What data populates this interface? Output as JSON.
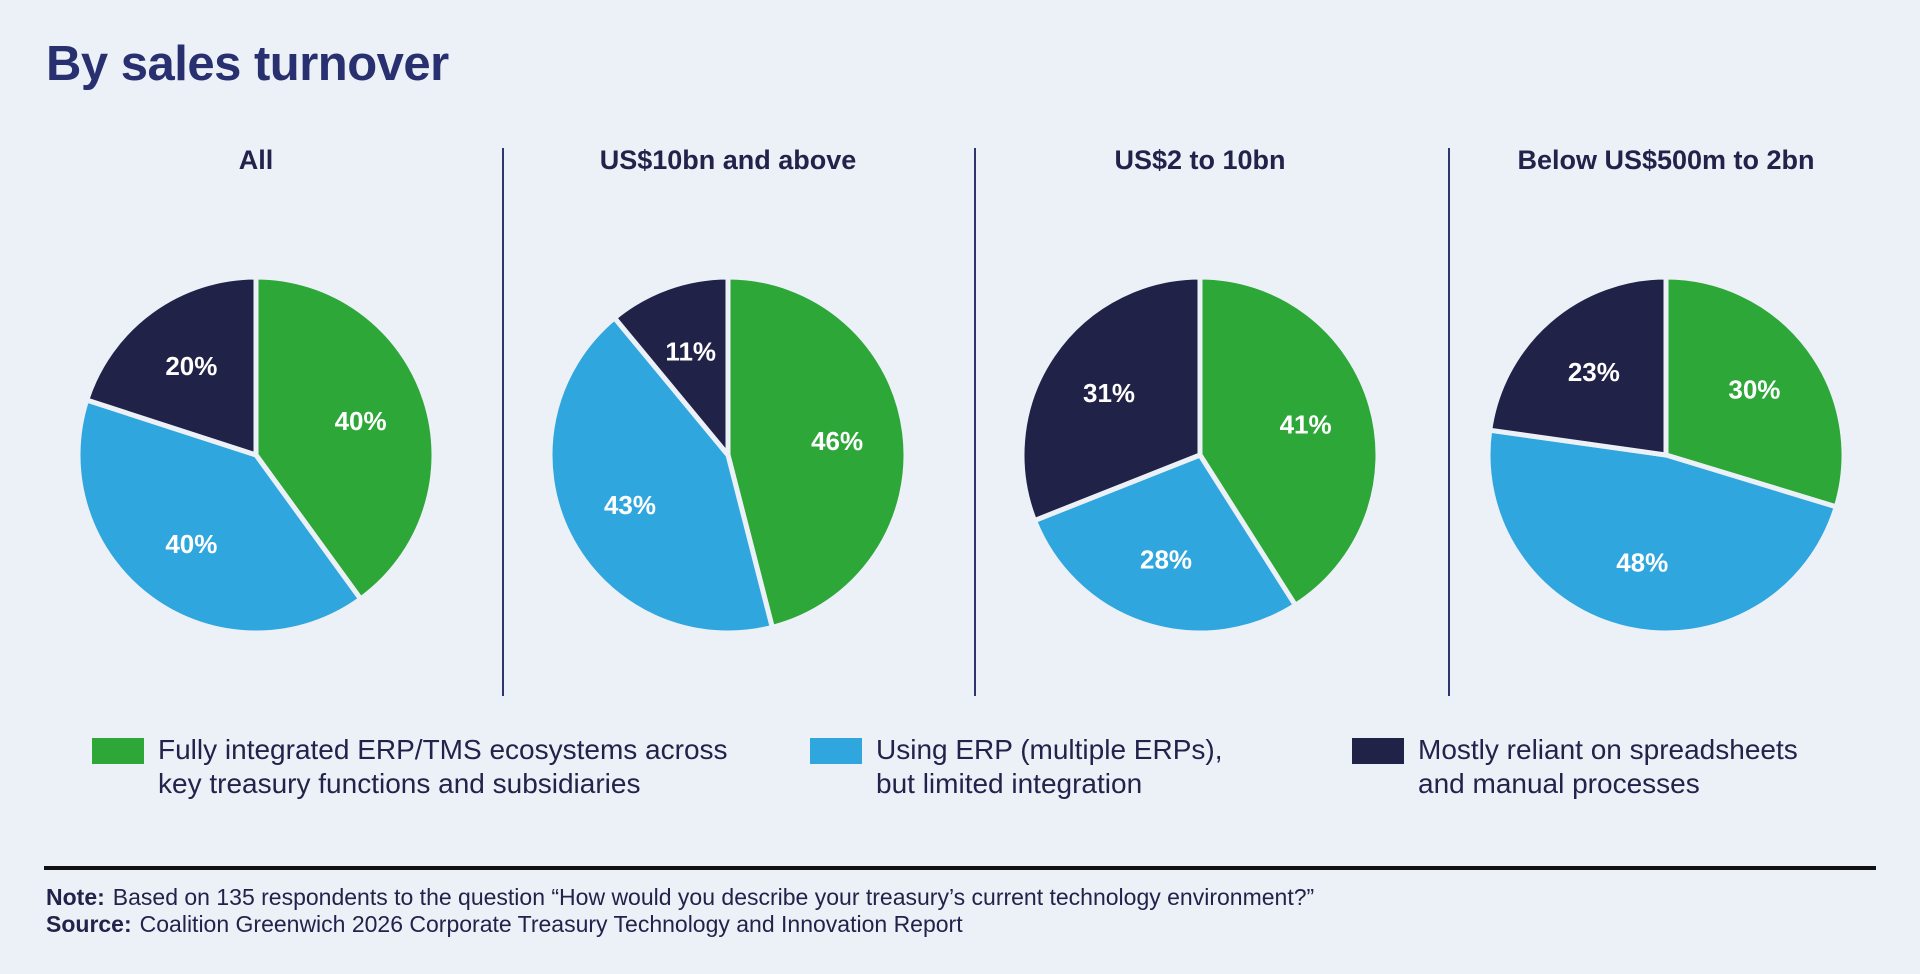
{
  "title": "By sales turnover",
  "colors": {
    "fully_integrated": "#2ea739",
    "using_erp": "#30a6de",
    "manual": "#212247",
    "slice_label": "#ffffff",
    "slice_border": "#ecf1f8"
  },
  "chart_data": [
    {
      "type": "pie",
      "title": "All",
      "categories": [
        "Fully integrated ERP/TMS ecosystems across key treasury functions and subsidiaries",
        "Using ERP (multiple ERPs), but limited integration",
        "Mostly reliant on spreadsheets and manual processes"
      ],
      "values": [
        40,
        40,
        20
      ],
      "labels": [
        "40%",
        "40%",
        "20%"
      ]
    },
    {
      "type": "pie",
      "title": "US$10bn and above",
      "categories": [
        "Fully integrated ERP/TMS ecosystems across key treasury functions and subsidiaries",
        "Using ERP (multiple ERPs), but limited integration",
        "Mostly reliant on spreadsheets and manual processes"
      ],
      "values": [
        46,
        43,
        11
      ],
      "labels": [
        "46%",
        "43%",
        "11%"
      ]
    },
    {
      "type": "pie",
      "title": "US$2 to 10bn",
      "categories": [
        "Fully integrated ERP/TMS ecosystems across key treasury functions and subsidiaries",
        "Using ERP (multiple ERPs), but limited integration",
        "Mostly reliant on spreadsheets and manual processes"
      ],
      "values": [
        41,
        28,
        31
      ],
      "labels": [
        "41%",
        "28%",
        "31%"
      ]
    },
    {
      "type": "pie",
      "title": "Below US$500m to 2bn",
      "categories": [
        "Fully integrated ERP/TMS ecosystems across key treasury functions and subsidiaries",
        "Using ERP (multiple ERPs), but limited integration",
        "Mostly reliant on spreadsheets and manual processes"
      ],
      "values": [
        30,
        48,
        23
      ],
      "labels": [
        "30%",
        "48%",
        "23%"
      ]
    }
  ],
  "legend": [
    {
      "line1": "Fully integrated ERP/TMS ecosystems across",
      "line2": "key treasury functions and subsidiaries"
    },
    {
      "line1": "Using ERP (multiple ERPs),",
      "line2": "but limited integration"
    },
    {
      "line1": "Mostly reliant on spreadsheets",
      "line2": "and manual processes"
    }
  ],
  "note": {
    "label": "Note:",
    "text": "Based on 135 respondents to the question “How would you describe your treasury’s current technology environment?”"
  },
  "source": {
    "label": "Source:",
    "text": "Coalition Greenwich 2026 Corporate Treasury Technology and Innovation Report"
  }
}
